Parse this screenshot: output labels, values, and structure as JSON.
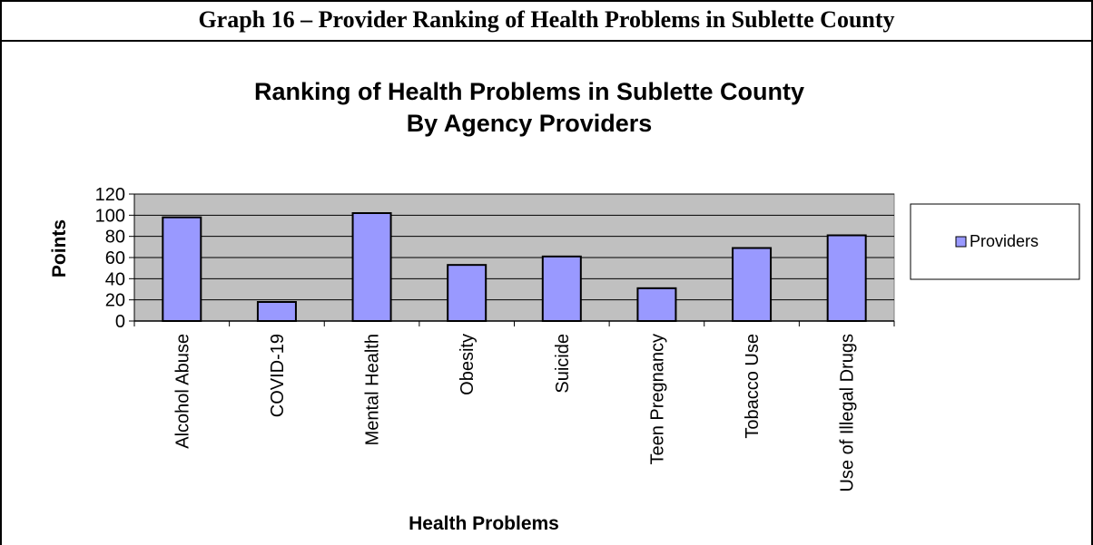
{
  "header": {
    "title": "Graph 16 – Provider Ranking of Health Problems in Sublette County"
  },
  "chart_data": {
    "type": "bar",
    "title_lines": [
      "Ranking of Health Problems in Sublette County",
      "By Agency Providers"
    ],
    "xlabel": "Health Problems",
    "ylabel": "Points",
    "ylim": [
      0,
      120
    ],
    "yticks": [
      "0",
      "20",
      "40",
      "60",
      "80",
      "100",
      "120"
    ],
    "categories": [
      "Alcohol Abuse",
      "COVID-19",
      "Mental Health",
      "Obesity",
      "Suicide",
      "Teen Pregnancy",
      "Tobacco Use",
      "Use of Illegal Drugs"
    ],
    "series": [
      {
        "name": "Providers",
        "values": [
          98,
          18,
          102,
          53,
          61,
          31,
          69,
          81
        ]
      }
    ],
    "grid": true,
    "legend": "right",
    "colors": {
      "bar": "#9999ff",
      "plot_bg": "#c0c0c0",
      "outline": "#000000"
    }
  }
}
